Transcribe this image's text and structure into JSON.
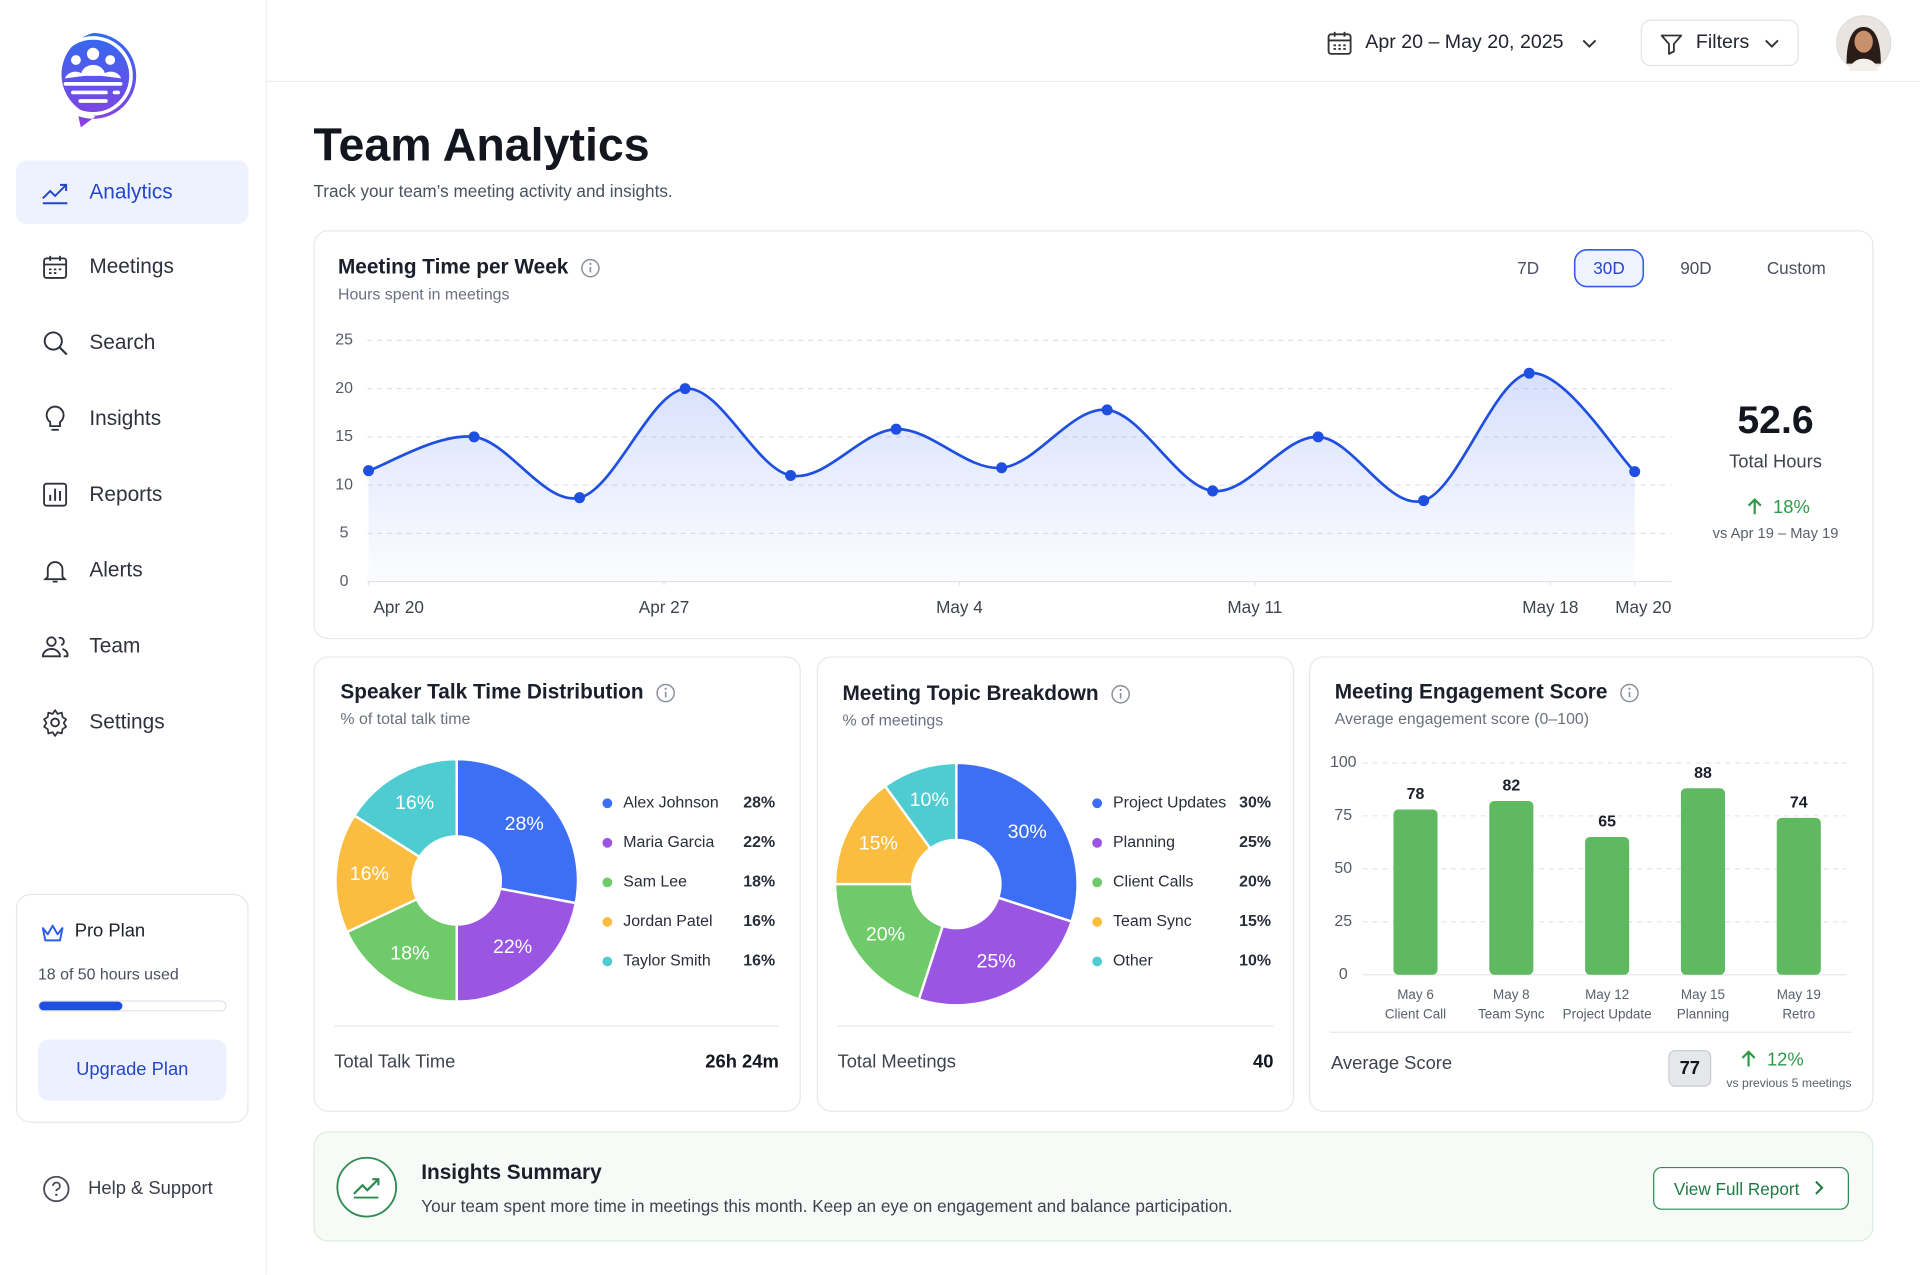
{
  "sidebar": {
    "nav": [
      "Analytics",
      "Meetings",
      "Search",
      "Insights",
      "Reports",
      "Alerts",
      "Team",
      "Settings"
    ],
    "active_nav": 0,
    "plan": {
      "name": "Pro Plan",
      "usage": "18 of 50 hours used",
      "button": "Upgrade Plan"
    },
    "help": "Help & Support"
  },
  "header": {
    "date_range": "Apr 20 – May 20, 2025",
    "filters": "Filters"
  },
  "page": {
    "title": "Team Analytics",
    "subtitle": "Track your team’s meeting activity and insights."
  },
  "chart_data": [
    {
      "type": "line",
      "title": "Meeting Time per Week",
      "subtitle": "Hours spent in meetings",
      "ranges": [
        "7D",
        "30D",
        "90D",
        "Custom"
      ],
      "active_range": 1,
      "x": [
        0,
        2.5,
        5,
        7.5,
        10,
        12.5,
        15,
        17.5,
        20,
        22.5,
        25,
        27.5,
        30
      ],
      "values": [
        11.5,
        15,
        8.7,
        20,
        11,
        15.8,
        11.8,
        17.8,
        9.4,
        15,
        8.4,
        21.6,
        11.4
      ],
      "color": "#1f4fe0",
      "xlim": [
        0,
        30
      ],
      "xticks": [
        {
          "value": 0,
          "label": "Apr 20"
        },
        {
          "value": 7,
          "label": "Apr 27"
        },
        {
          "value": 14,
          "label": "May 4"
        },
        {
          "value": 21,
          "label": "May 11"
        },
        {
          "value": 28,
          "label": "May 18"
        },
        {
          "value": 30,
          "label": "May 20"
        }
      ],
      "ylim": [
        0,
        25
      ],
      "yticks": [
        0,
        5,
        10,
        15,
        20,
        25
      ],
      "grid": true,
      "summary": {
        "value": "52.6",
        "label": "Total Hours",
        "change": "18%",
        "period": "vs Apr 19 – May 19"
      }
    },
    {
      "type": "pie",
      "title": "Speaker Talk Time Distribution",
      "subtitle": "% of total talk time",
      "categories": [
        "Alex Johnson",
        "Maria Garcia",
        "Sam Lee",
        "Jordan Patel",
        "Taylor Smith"
      ],
      "values": [
        28,
        22,
        18,
        16,
        16
      ],
      "value_labels": [
        "28%",
        "22%",
        "18%",
        "16%",
        "16%"
      ],
      "colors": [
        "#3d6ff5",
        "#9b55e3",
        "#6fca6a",
        "#fbbd3f",
        "#4fcbd2"
      ],
      "footer": {
        "label": "Total Talk Time",
        "value": "26h 24m"
      }
    },
    {
      "type": "pie",
      "title": "Meeting Topic Breakdown",
      "subtitle": "% of meetings",
      "categories": [
        "Project Updates",
        "Planning",
        "Client Calls",
        "Team Sync",
        "Other"
      ],
      "values": [
        30,
        25,
        20,
        15,
        10
      ],
      "value_labels": [
        "30%",
        "25%",
        "20%",
        "15%",
        "10%"
      ],
      "colors": [
        "#3d6ff5",
        "#9b55e3",
        "#6fca6a",
        "#fbbd3f",
        "#4fcbd2"
      ],
      "footer": {
        "label": "Total Meetings",
        "value": 40
      }
    },
    {
      "type": "bar",
      "title": "Meeting Engagement Score",
      "subtitle": "Average engagement score (0–100)",
      "categories": [
        [
          "May 6",
          "Client Call"
        ],
        [
          "May 8",
          "Team Sync"
        ],
        [
          "May 12",
          "Project Update"
        ],
        [
          "May 15",
          "Planning"
        ],
        [
          "May 19",
          "Retro"
        ]
      ],
      "values": [
        78,
        82,
        65,
        88,
        74
      ],
      "color": "#5fb960",
      "ylim": [
        0,
        100
      ],
      "yticks": [
        0,
        25,
        50,
        75,
        100
      ],
      "grid": true,
      "footer": {
        "label": "Average Score",
        "value": 77,
        "change": "12%",
        "note": "vs previous 5 meetings"
      }
    }
  ],
  "insights": {
    "title": "Insights Summary",
    "text": "Your team spent more time in meetings this month. Keep an eye on engagement and balance participation.",
    "button": "View Full Report"
  }
}
